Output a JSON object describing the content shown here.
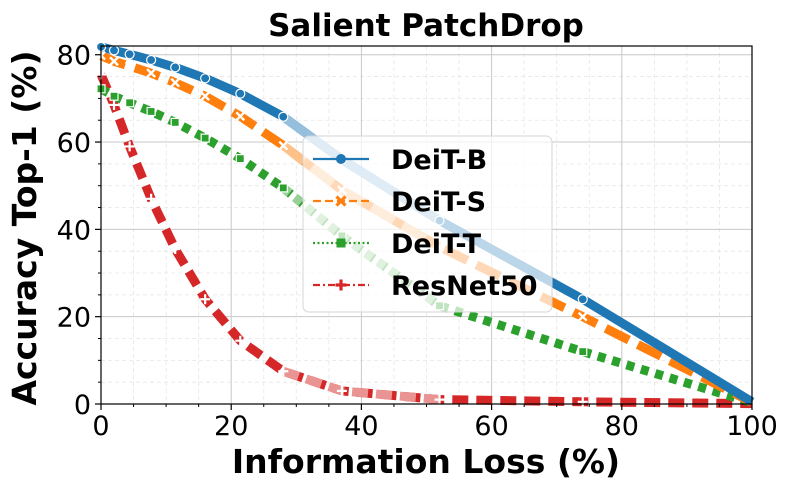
{
  "chart_data": {
    "type": "line",
    "title": "Salient PatchDrop",
    "xlabel": "Information Loss (%)",
    "ylabel": "Accuracy Top-1 (%)",
    "xlim": [
      0,
      100
    ],
    "ylim": [
      0,
      82
    ],
    "xticks": [
      0,
      20,
      40,
      60,
      80,
      100
    ],
    "yticks": [
      0,
      20,
      40,
      60,
      80
    ],
    "grid": true,
    "legend_position": "center",
    "series": [
      {
        "name": "DeiT-B",
        "color": "#1f77b4",
        "linestyle": "solid",
        "marker": "circle",
        "x": [
          0,
          2.0,
          4.4,
          7.7,
          11.4,
          16.0,
          21.4,
          28.0,
          37.0,
          52.0,
          74.0,
          100
        ],
        "y": [
          81.8,
          81.0,
          80.1,
          78.8,
          77.1,
          74.6,
          71.1,
          65.8,
          56.0,
          42.0,
          24.0,
          0.5
        ]
      },
      {
        "name": "DeiT-S",
        "color": "#ff7f0e",
        "linestyle": "dashed",
        "marker": "x",
        "x": [
          0,
          2.0,
          4.4,
          7.7,
          11.4,
          16.0,
          21.4,
          28.0,
          37.0,
          52.0,
          74.0,
          100
        ],
        "y": [
          79.8,
          78.5,
          77.4,
          75.8,
          73.6,
          70.5,
          65.9,
          59.2,
          49.0,
          36.0,
          20.0,
          0.4
        ]
      },
      {
        "name": "DeiT-T",
        "color": "#2ca02c",
        "linestyle": "dotted",
        "marker": "square",
        "x": [
          0,
          2.0,
          4.4,
          7.7,
          11.4,
          16.0,
          21.4,
          28.0,
          37.0,
          52.0,
          74.0,
          100
        ],
        "y": [
          72.2,
          70.5,
          69.0,
          67.0,
          64.5,
          60.9,
          56.2,
          49.5,
          38.5,
          22.5,
          12.0,
          0.3
        ]
      },
      {
        "name": "ResNet50",
        "color": "#d62728",
        "linestyle": "dashdot",
        "marker": "plus",
        "x": [
          0,
          2.0,
          4.4,
          7.7,
          11.4,
          16.0,
          21.4,
          28.0,
          37.0,
          52.0,
          74.0,
          100
        ],
        "y": [
          75.5,
          68.5,
          59.0,
          47.0,
          35.5,
          24.0,
          14.5,
          7.5,
          3.0,
          1.0,
          0.5,
          0.1
        ]
      }
    ]
  }
}
